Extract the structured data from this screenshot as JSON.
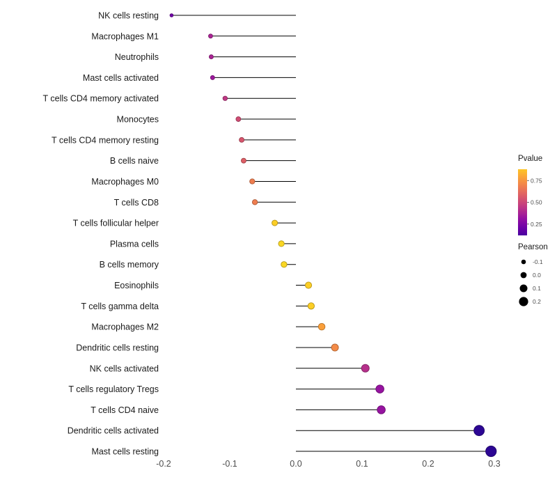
{
  "chart_data": {
    "type": "lollipop",
    "title": "",
    "xlabel": "",
    "ylabel": "",
    "grid": false,
    "xlim": [
      -0.235,
      0.33
    ],
    "x_ticks": [
      -0.2,
      -0.1,
      0.0,
      0.1,
      0.2,
      0.3
    ],
    "x_tick_labels": [
      "-0.2",
      "-0.1",
      "0.0",
      "0.1",
      "0.2",
      "0.3"
    ],
    "points": [
      {
        "category": "NK cells resting",
        "pearson": -0.188,
        "pvalue": 0.22
      },
      {
        "category": "Macrophages M1",
        "pearson": -0.129,
        "pvalue": 0.38
      },
      {
        "category": "Neutrophils",
        "pearson": -0.128,
        "pvalue": 0.38
      },
      {
        "category": "Mast cells activated",
        "pearson": -0.126,
        "pvalue": 0.34
      },
      {
        "category": "T cells CD4 memory activated",
        "pearson": -0.107,
        "pvalue": 0.45
      },
      {
        "category": "Monocytes",
        "pearson": -0.087,
        "pvalue": 0.52
      },
      {
        "category": "T cells CD4 memory resting",
        "pearson": -0.082,
        "pvalue": 0.55
      },
      {
        "category": "B cells naive",
        "pearson": -0.079,
        "pvalue": 0.58
      },
      {
        "category": "Macrophages M0",
        "pearson": -0.066,
        "pvalue": 0.68
      },
      {
        "category": "T cells CD8",
        "pearson": -0.062,
        "pvalue": 0.68
      },
      {
        "category": "T cells follicular helper",
        "pearson": -0.032,
        "pvalue": 0.9
      },
      {
        "category": "Plasma cells",
        "pearson": -0.022,
        "pvalue": 0.92
      },
      {
        "category": "B cells memory",
        "pearson": -0.018,
        "pvalue": 0.92
      },
      {
        "category": "Eosinophils",
        "pearson": 0.019,
        "pvalue": 0.9
      },
      {
        "category": "T cells gamma delta",
        "pearson": 0.023,
        "pvalue": 0.9
      },
      {
        "category": "Macrophages M2",
        "pearson": 0.039,
        "pvalue": 0.78
      },
      {
        "category": "Dendritic cells resting",
        "pearson": 0.059,
        "pvalue": 0.72
      },
      {
        "category": "NK cells activated",
        "pearson": 0.105,
        "pvalue": 0.42
      },
      {
        "category": "T cells regulatory  Tregs",
        "pearson": 0.127,
        "pvalue": 0.32
      },
      {
        "category": "T cells CD4 naive",
        "pearson": 0.129,
        "pvalue": 0.32
      },
      {
        "category": "Dendritic cells activated",
        "pearson": 0.277,
        "pvalue": 0.06
      },
      {
        "category": "Mast cells resting",
        "pearson": 0.295,
        "pvalue": 0.06
      }
    ],
    "legends": {
      "pvalue": {
        "title": "Pvalue",
        "ticks": [
          0.75,
          0.5,
          0.25
        ],
        "tick_labels": [
          "0.75",
          "0.50",
          "0.25"
        ],
        "bar_top_value": 0.88,
        "bar_bottom_value": 0.12
      },
      "pearson": {
        "title": "Pearson",
        "sizes": [
          -0.1,
          0.0,
          0.1,
          0.2
        ],
        "labels": [
          "-0.1",
          "0.0",
          "0.1",
          "0.2"
        ]
      }
    },
    "colormap": {
      "name": "plasma",
      "stops": [
        [
          0.0,
          "#0d0887"
        ],
        [
          0.1,
          "#41049d"
        ],
        [
          0.2,
          "#6a00a8"
        ],
        [
          0.3,
          "#8f0da4"
        ],
        [
          0.4,
          "#b12a90"
        ],
        [
          0.5,
          "#cc4778"
        ],
        [
          0.6,
          "#e16462"
        ],
        [
          0.7,
          "#f2844b"
        ],
        [
          0.8,
          "#fca636"
        ],
        [
          0.9,
          "#fcce25"
        ],
        [
          1.0,
          "#f0f921"
        ]
      ]
    },
    "colors": {
      "background": "#ffffff",
      "segment": "#000000",
      "label_text": "#1a1a1a",
      "tick_text": "#4d4d4d",
      "legend_dot": "#000000"
    }
  }
}
